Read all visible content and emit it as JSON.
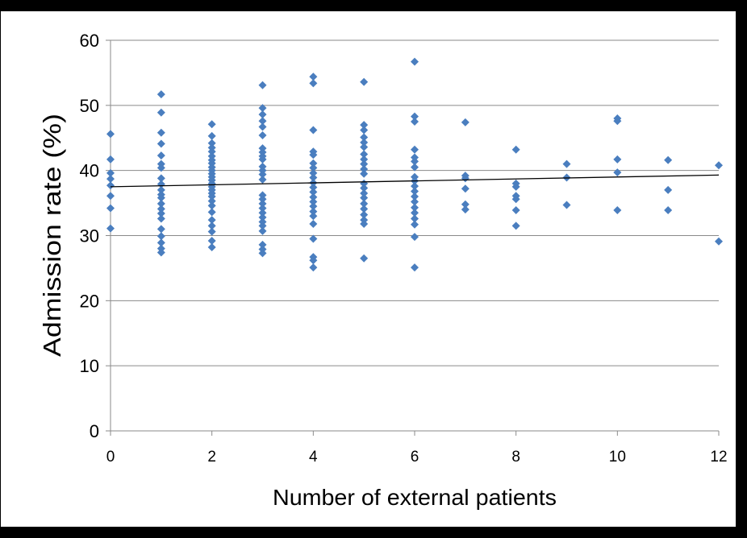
{
  "chart_data": {
    "type": "scatter",
    "title": "",
    "xlabel": "Number of external patients",
    "ylabel": "Admission rate (%)",
    "xlim": [
      0,
      12
    ],
    "ylim": [
      0,
      60
    ],
    "x_ticks": [
      "0",
      "2",
      "4",
      "6",
      "8",
      "10",
      "12"
    ],
    "y_ticks": [
      "0",
      "10",
      "20",
      "30",
      "40",
      "50",
      "60"
    ],
    "grid": "horizontal",
    "legend": "none",
    "marker": "diamond",
    "marker_color": "#4a7ebf",
    "trendline": {
      "type": "linear",
      "start": [
        0,
        37.5
      ],
      "end": [
        12,
        39.3
      ],
      "color": "#000000"
    },
    "series": [
      {
        "points": [
          [
            0,
            45.6
          ],
          [
            0,
            41.7
          ],
          [
            0,
            39.6
          ],
          [
            0,
            38.7
          ],
          [
            0,
            37.7
          ],
          [
            0,
            36.1
          ],
          [
            0,
            34.2
          ],
          [
            0,
            31.1
          ],
          [
            1,
            51.7
          ],
          [
            1,
            48.9
          ],
          [
            1,
            45.8
          ],
          [
            1,
            44.1
          ],
          [
            1,
            42.3
          ],
          [
            1,
            41.0
          ],
          [
            1,
            40.4
          ],
          [
            1,
            38.8
          ],
          [
            1,
            37.9
          ],
          [
            1,
            37.0
          ],
          [
            1,
            36.3
          ],
          [
            1,
            35.8
          ],
          [
            1,
            34.9
          ],
          [
            1,
            34.1
          ],
          [
            1,
            33.4
          ],
          [
            1,
            32.6
          ],
          [
            1,
            31.0
          ],
          [
            1,
            29.9
          ],
          [
            1,
            28.9
          ],
          [
            1,
            28.0
          ],
          [
            1,
            27.4
          ],
          [
            2,
            47.1
          ],
          [
            2,
            45.3
          ],
          [
            2,
            44.2
          ],
          [
            2,
            43.5
          ],
          [
            2,
            42.9
          ],
          [
            2,
            42.2
          ],
          [
            2,
            41.6
          ],
          [
            2,
            41.1
          ],
          [
            2,
            40.5
          ],
          [
            2,
            40.0
          ],
          [
            2,
            39.5
          ],
          [
            2,
            39.0
          ],
          [
            2,
            38.5
          ],
          [
            2,
            38.0
          ],
          [
            2,
            37.5
          ],
          [
            2,
            37.0
          ],
          [
            2,
            36.5
          ],
          [
            2,
            36.0
          ],
          [
            2,
            35.3
          ],
          [
            2,
            34.6
          ],
          [
            2,
            33.6
          ],
          [
            2,
            32.4
          ],
          [
            2,
            31.5
          ],
          [
            2,
            30.6
          ],
          [
            2,
            29.2
          ],
          [
            2,
            28.2
          ],
          [
            3,
            53.1
          ],
          [
            3,
            49.6
          ],
          [
            3,
            48.6
          ],
          [
            3,
            47.6
          ],
          [
            3,
            46.7
          ],
          [
            3,
            45.4
          ],
          [
            3,
            43.4
          ],
          [
            3,
            42.8
          ],
          [
            3,
            42.2
          ],
          [
            3,
            41.7
          ],
          [
            3,
            40.6
          ],
          [
            3,
            40.0
          ],
          [
            3,
            39.4
          ],
          [
            3,
            38.6
          ],
          [
            3,
            36.2
          ],
          [
            3,
            35.6
          ],
          [
            3,
            34.9
          ],
          [
            3,
            34.2
          ],
          [
            3,
            33.5
          ],
          [
            3,
            32.8
          ],
          [
            3,
            32.1
          ],
          [
            3,
            31.5
          ],
          [
            3,
            30.7
          ],
          [
            3,
            28.6
          ],
          [
            3,
            27.9
          ],
          [
            3,
            27.3
          ],
          [
            4,
            54.4
          ],
          [
            4,
            53.4
          ],
          [
            4,
            46.2
          ],
          [
            4,
            42.9
          ],
          [
            4,
            42.4
          ],
          [
            4,
            41.1
          ],
          [
            4,
            40.4
          ],
          [
            4,
            39.6
          ],
          [
            4,
            38.9
          ],
          [
            4,
            38.1
          ],
          [
            4,
            37.4
          ],
          [
            4,
            36.7
          ],
          [
            4,
            35.9
          ],
          [
            4,
            35.2
          ],
          [
            4,
            34.5
          ],
          [
            4,
            33.7
          ],
          [
            4,
            33.0
          ],
          [
            4,
            31.8
          ],
          [
            4,
            29.5
          ],
          [
            4,
            26.7
          ],
          [
            4,
            26.2
          ],
          [
            4,
            25.1
          ],
          [
            5,
            53.6
          ],
          [
            5,
            47.0
          ],
          [
            5,
            46.2
          ],
          [
            5,
            45.1
          ],
          [
            5,
            44.3
          ],
          [
            5,
            43.6
          ],
          [
            5,
            42.5
          ],
          [
            5,
            41.7
          ],
          [
            5,
            41.0
          ],
          [
            5,
            40.2
          ],
          [
            5,
            39.5
          ],
          [
            5,
            38.0
          ],
          [
            5,
            37.3
          ],
          [
            5,
            36.5
          ],
          [
            5,
            35.8
          ],
          [
            5,
            34.9
          ],
          [
            5,
            34.1
          ],
          [
            5,
            33.2
          ],
          [
            5,
            32.4
          ],
          [
            5,
            31.8
          ],
          [
            5,
            26.5
          ],
          [
            6,
            56.7
          ],
          [
            6,
            48.3
          ],
          [
            6,
            47.5
          ],
          [
            6,
            43.2
          ],
          [
            6,
            42.0
          ],
          [
            6,
            41.4
          ],
          [
            6,
            40.5
          ],
          [
            6,
            39.0
          ],
          [
            6,
            38.4
          ],
          [
            6,
            37.6
          ],
          [
            6,
            36.8
          ],
          [
            6,
            36.0
          ],
          [
            6,
            35.2
          ],
          [
            6,
            34.3
          ],
          [
            6,
            33.5
          ],
          [
            6,
            32.6
          ],
          [
            6,
            31.7
          ],
          [
            6,
            29.8
          ],
          [
            6,
            25.1
          ],
          [
            7,
            47.4
          ],
          [
            7,
            39.2
          ],
          [
            7,
            38.8
          ],
          [
            7,
            37.2
          ],
          [
            7,
            34.8
          ],
          [
            7,
            34.0
          ],
          [
            8,
            43.2
          ],
          [
            8,
            38.0
          ],
          [
            8,
            37.5
          ],
          [
            8,
            36.1
          ],
          [
            8,
            35.6
          ],
          [
            8,
            33.9
          ],
          [
            8,
            31.5
          ],
          [
            9,
            41.0
          ],
          [
            9,
            38.9
          ],
          [
            9,
            34.7
          ],
          [
            10,
            48.0
          ],
          [
            10,
            47.6
          ],
          [
            10,
            41.7
          ],
          [
            10,
            39.7
          ],
          [
            10,
            33.9
          ],
          [
            11,
            41.6
          ],
          [
            11,
            37.0
          ],
          [
            11,
            33.9
          ],
          [
            12,
            40.8
          ],
          [
            12,
            29.1
          ]
        ]
      }
    ]
  }
}
